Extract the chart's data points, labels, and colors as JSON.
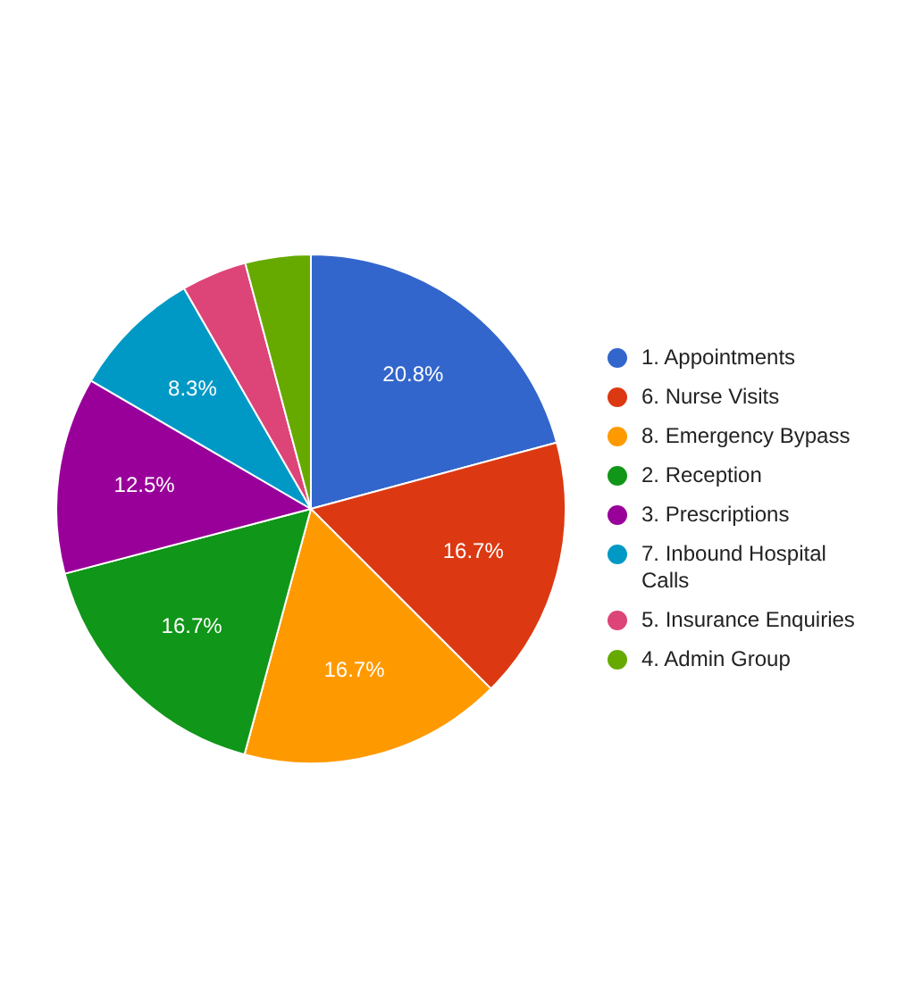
{
  "chart_data": {
    "type": "pie",
    "categories": [
      "1. Appointments",
      "6. Nurse Visits",
      "8. Emergency Bypass",
      "2. Reception",
      "3. Prescriptions",
      "7. Inbound Hospital Calls",
      "5. Insurance Enquiries",
      "4. Admin Group"
    ],
    "values": [
      20.8,
      16.7,
      16.7,
      16.7,
      12.5,
      8.3,
      4.15,
      4.15
    ],
    "colors": [
      "#3366cc",
      "#dc3912",
      "#ff9900",
      "#109618",
      "#990099",
      "#0099c6",
      "#dd4477",
      "#66aa00"
    ],
    "value_labels": [
      "20.8%",
      "16.7%",
      "16.7%",
      "16.7%",
      "12.5%",
      "8.3%",
      null,
      null
    ],
    "legend": "right"
  }
}
